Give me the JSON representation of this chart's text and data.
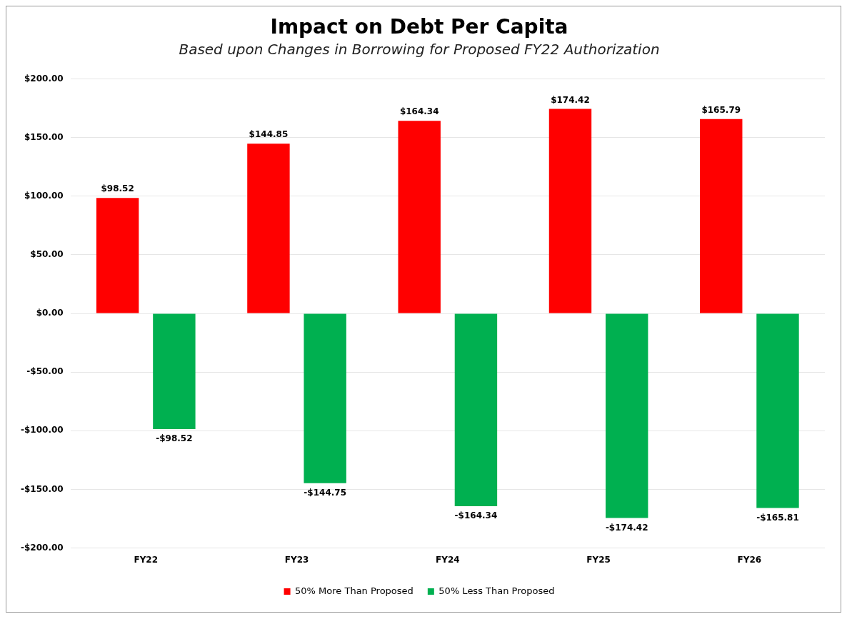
{
  "chart_data": {
    "type": "bar",
    "title": "Impact on Debt Per Capita",
    "subtitle": "Based upon Changes in Borrowing for Proposed FY22 Authorization",
    "categories": [
      "FY22",
      "FY23",
      "FY24",
      "FY25",
      "FY26"
    ],
    "series": [
      {
        "name": "50% More Than Proposed",
        "color": "#ff0000",
        "values": [
          98.52,
          144.85,
          164.34,
          174.42,
          165.79
        ],
        "value_labels": [
          "$98.52",
          "$144.85",
          "$164.34",
          "$174.42",
          "$165.79"
        ]
      },
      {
        "name": "50% Less Than Proposed",
        "color": "#00b050",
        "values": [
          -98.52,
          -144.75,
          -164.34,
          -174.42,
          -165.81
        ],
        "value_labels": [
          "-$98.52",
          "-$144.75",
          "-$164.34",
          "-$174.42",
          "-$165.81"
        ]
      }
    ],
    "ylim": [
      -200,
      200
    ],
    "yticks": [
      {
        "value": -200,
        "label": "-$200.00"
      },
      {
        "value": -150,
        "label": "-$150.00"
      },
      {
        "value": -100,
        "label": "-$100.00"
      },
      {
        "value": -50,
        "label": "-$50.00"
      },
      {
        "value": 0,
        "label": "$0.00"
      },
      {
        "value": 50,
        "label": "$50.00"
      },
      {
        "value": 100,
        "label": "$100.00"
      },
      {
        "value": 150,
        "label": "$150.00"
      },
      {
        "value": 200,
        "label": "$200.00"
      }
    ],
    "grid": "y",
    "legend": "bottom"
  }
}
